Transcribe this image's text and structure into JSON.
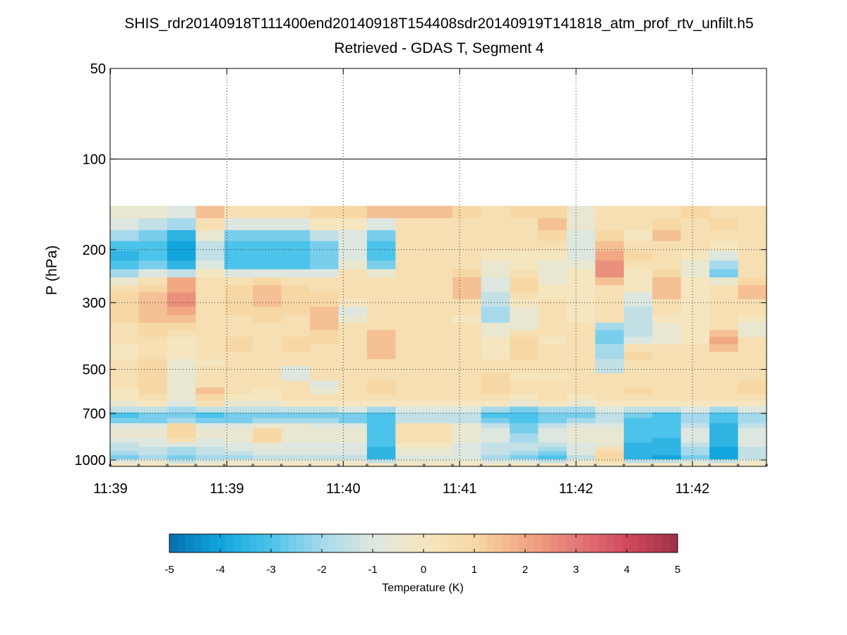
{
  "chart_data": {
    "type": "heatmap",
    "title": "SHIS_rdr20140918T111400end20140918T154408sdr20140919T141818_atm_prof_rtv_unfilt.h5",
    "subtitle": "Retrieved - GDAS T, Segment 4",
    "ylabel": "P (hPa)",
    "xlabel": "",
    "y_scale": "log",
    "y_reversed": true,
    "ylim": [
      50,
      1050
    ],
    "y_ticks": [
      50,
      100,
      200,
      300,
      500,
      700,
      1000
    ],
    "y_tick_labels": [
      "50",
      "100",
      "200",
      "300",
      "500",
      "700",
      "1000"
    ],
    "x_tick_labels": [
      "11:39",
      "11:39",
      "11:40",
      "11:41",
      "11:42",
      "11:42"
    ],
    "grid": true,
    "colorbar": {
      "label": "Temperature (K)",
      "range": [
        -5,
        5
      ],
      "ticks": [
        -5,
        -4,
        -3,
        -2,
        -1,
        0,
        1,
        2,
        3,
        4,
        5
      ],
      "tick_labels": [
        "-5",
        "-4",
        "-3",
        "-2",
        "-1",
        "0",
        "1",
        "2",
        "3",
        "4",
        "5"
      ],
      "colors": [
        "#0570b0",
        "#11a5dc",
        "#4cc3ea",
        "#a6d9ec",
        "#dde7e0",
        "#f5e6c0",
        "#f7d8a5",
        "#f1a883",
        "#e47877",
        "#d14a5c",
        "#a1304a"
      ]
    },
    "levels_hPa": [
      150,
      165,
      180,
      195,
      210,
      225,
      240,
      255,
      270,
      285,
      300,
      320,
      340,
      360,
      380,
      400,
      425,
      450,
      475,
      500,
      530,
      560,
      590,
      620,
      650,
      680,
      710,
      740,
      770,
      800,
      830,
      860,
      890,
      920,
      950,
      980,
      1010,
      1040
    ],
    "columns": [
      {
        "label": "1",
        "values": [
          -0.5,
          -1.0,
          -2.0,
          -3.0,
          -3.5,
          -3.0,
          -2.0,
          -0.5,
          0.5,
          1.0,
          1.0,
          1.0,
          1.0,
          0.5,
          0.5,
          0.5,
          0.0,
          0.0,
          0.5,
          0.5,
          0.5,
          0.5,
          0.0,
          0.0,
          -0.5,
          -1.5,
          -3.0,
          -2.5,
          -1.0,
          -0.5,
          -0.5,
          -1.0,
          -1.5,
          -1.5,
          -2.0,
          -2.5,
          -1.0,
          0.0
        ]
      },
      {
        "label": "2",
        "values": [
          -0.5,
          -1.5,
          -2.5,
          -3.0,
          -3.0,
          -2.5,
          -1.0,
          0.5,
          1.0,
          1.5,
          1.5,
          1.5,
          1.5,
          1.0,
          1.0,
          0.5,
          0.5,
          0.5,
          1.0,
          1.0,
          1.0,
          1.0,
          1.0,
          0.5,
          0.0,
          -1.5,
          -2.5,
          -2.5,
          -1.0,
          -0.5,
          -0.5,
          -1.0,
          -1.0,
          -1.5,
          -1.5,
          -2.0,
          -0.5,
          0.0
        ]
      },
      {
        "label": "3",
        "values": [
          -1.0,
          -2.0,
          -3.5,
          -4.0,
          -4.0,
          -3.5,
          -1.5,
          2.0,
          2.0,
          2.5,
          2.5,
          2.0,
          1.5,
          1.0,
          0.5,
          0.0,
          0.0,
          0.0,
          -0.5,
          -0.5,
          -0.5,
          -0.5,
          -0.5,
          -0.5,
          -1.0,
          -2.0,
          -2.5,
          -2.0,
          1.0,
          1.0,
          1.0,
          0.5,
          -1.0,
          -2.0,
          -2.0,
          -2.5,
          -1.5,
          0.0
        ]
      },
      {
        "label": "4",
        "values": [
          1.5,
          0.5,
          -0.5,
          -1.5,
          -1.5,
          -1.0,
          0.0,
          0.5,
          0.5,
          0.5,
          0.5,
          0.5,
          0.5,
          0.5,
          0.5,
          0.5,
          0.5,
          0.5,
          0.0,
          0.5,
          0.5,
          0.5,
          1.5,
          1.0,
          0.5,
          -1.5,
          -3.0,
          -2.5,
          -1.0,
          -0.5,
          -0.5,
          -1.0,
          -1.0,
          -1.5,
          -1.5,
          -2.0,
          -1.0,
          0.0
        ]
      },
      {
        "label": "5",
        "values": [
          0.5,
          -1.0,
          -2.5,
          -3.0,
          -3.0,
          -3.0,
          -1.0,
          0.5,
          1.0,
          1.0,
          1.0,
          1.0,
          0.5,
          0.5,
          0.5,
          1.0,
          1.0,
          0.5,
          0.5,
          0.5,
          0.5,
          0.5,
          0.5,
          0.0,
          -0.5,
          -1.5,
          -2.5,
          -2.5,
          -1.0,
          -0.5,
          -0.5,
          -0.5,
          -1.0,
          -1.0,
          -1.5,
          -2.0,
          -0.5,
          0.0
        ]
      },
      {
        "label": "6",
        "values": [
          0.5,
          -1.0,
          -2.5,
          -3.0,
          -3.0,
          -3.0,
          -1.0,
          1.0,
          1.5,
          1.5,
          1.5,
          1.0,
          1.0,
          0.5,
          0.5,
          0.5,
          0.5,
          0.5,
          0.5,
          0.5,
          0.5,
          0.5,
          0.0,
          0.0,
          -0.5,
          -1.5,
          -2.5,
          -2.0,
          -0.5,
          1.0,
          1.0,
          1.0,
          -0.5,
          -1.0,
          -1.0,
          -1.5,
          -0.5,
          0.0
        ]
      },
      {
        "label": "7",
        "values": [
          0.5,
          -1.0,
          -2.5,
          -3.0,
          -3.0,
          -3.0,
          -1.0,
          0.5,
          1.0,
          1.0,
          1.0,
          1.0,
          0.5,
          0.5,
          0.5,
          1.0,
          1.0,
          0.5,
          0.5,
          -1.0,
          -1.0,
          0.5,
          0.5,
          0.5,
          0.0,
          -1.5,
          -2.5,
          -2.0,
          -0.5,
          -0.5,
          -0.5,
          -0.5,
          -1.0,
          -1.0,
          -1.0,
          -1.5,
          -0.5,
          0.0
        ]
      },
      {
        "label": "8",
        "values": [
          1.0,
          0.0,
          -1.5,
          -2.5,
          -2.5,
          -2.5,
          -1.0,
          0.5,
          0.5,
          1.0,
          1.0,
          1.5,
          1.5,
          1.5,
          1.0,
          1.0,
          0.5,
          0.5,
          0.5,
          0.5,
          0.5,
          -1.0,
          -0.5,
          0.5,
          0.0,
          -1.5,
          -2.5,
          -2.0,
          -1.0,
          -0.5,
          -0.5,
          -0.5,
          -1.0,
          -1.0,
          -1.0,
          -1.5,
          -0.5,
          0.0
        ]
      },
      {
        "label": "9",
        "values": [
          1.0,
          0.0,
          -1.0,
          -1.0,
          -1.0,
          -0.5,
          0.5,
          0.5,
          0.5,
          0.5,
          0.0,
          -1.0,
          -0.5,
          0.5,
          0.5,
          0.5,
          0.5,
          0.5,
          0.5,
          0.5,
          0.5,
          0.5,
          0.5,
          0.5,
          0.0,
          -1.0,
          -2.5,
          -2.5,
          -1.0,
          -0.5,
          -0.5,
          -0.5,
          -1.0,
          -1.0,
          -1.0,
          -1.5,
          -0.5,
          0.0
        ]
      },
      {
        "label": "10",
        "values": [
          1.5,
          -1.0,
          -2.5,
          -3.0,
          -3.0,
          -2.5,
          -0.5,
          0.5,
          0.5,
          0.5,
          0.5,
          0.5,
          0.5,
          0.5,
          1.5,
          1.5,
          1.5,
          1.5,
          0.5,
          0.5,
          0.5,
          1.0,
          1.0,
          0.5,
          0.0,
          -2.0,
          -3.0,
          -3.0,
          -3.0,
          -3.0,
          -3.0,
          -3.0,
          -3.0,
          -3.5,
          -3.5,
          -3.5,
          -1.5,
          0.0
        ]
      },
      {
        "label": "11",
        "values": [
          1.5,
          0.5,
          0.5,
          0.5,
          0.5,
          0.5,
          0.5,
          0.5,
          0.5,
          0.5,
          0.5,
          0.5,
          0.5,
          0.5,
          0.5,
          0.5,
          0.5,
          0.5,
          0.5,
          0.5,
          0.5,
          0.5,
          0.5,
          0.5,
          0.0,
          -1.0,
          -1.5,
          -1.5,
          0.5,
          0.5,
          0.5,
          0.5,
          0.0,
          -0.5,
          -0.5,
          -1.0,
          -0.5,
          0.0
        ]
      },
      {
        "label": "12",
        "values": [
          1.5,
          0.5,
          0.5,
          0.5,
          0.5,
          0.5,
          0.5,
          0.5,
          0.5,
          0.5,
          0.5,
          0.5,
          0.5,
          0.5,
          0.5,
          0.5,
          0.5,
          0.5,
          0.5,
          0.5,
          0.5,
          0.5,
          0.5,
          0.5,
          0.0,
          -1.0,
          -1.5,
          -1.5,
          0.5,
          0.5,
          0.5,
          0.5,
          0.0,
          -0.5,
          -0.5,
          -1.0,
          -0.5,
          0.0
        ]
      },
      {
        "label": "13",
        "values": [
          1.0,
          0.5,
          0.5,
          0.5,
          0.5,
          0.5,
          1.0,
          1.5,
          1.5,
          1.5,
          0.5,
          0.5,
          0.0,
          0.5,
          0.5,
          0.5,
          0.5,
          0.5,
          0.5,
          0.5,
          0.5,
          0.5,
          0.5,
          0.5,
          0.0,
          -1.0,
          -1.5,
          -1.5,
          -0.5,
          -0.5,
          -0.5,
          -0.5,
          -1.0,
          -1.0,
          -1.0,
          -1.0,
          -0.5,
          0.0
        ]
      },
      {
        "label": "14",
        "values": [
          0.5,
          0.5,
          0.5,
          0.5,
          0.0,
          -0.5,
          -0.5,
          -1.0,
          -1.0,
          -1.5,
          -1.5,
          -2.0,
          -2.0,
          -0.5,
          -0.5,
          0.0,
          0.0,
          0.0,
          0.5,
          0.5,
          1.0,
          1.0,
          1.0,
          0.5,
          0.0,
          -2.0,
          -3.0,
          -2.5,
          -1.5,
          -1.0,
          -1.0,
          -1.0,
          -1.5,
          -1.5,
          -1.5,
          -2.0,
          -1.0,
          0.0
        ]
      },
      {
        "label": "15",
        "values": [
          1.0,
          0.5,
          0.5,
          0.5,
          0.0,
          0.0,
          0.5,
          1.0,
          1.0,
          0.5,
          0.0,
          -0.5,
          -0.5,
          -0.5,
          0.5,
          1.0,
          1.0,
          1.0,
          0.5,
          0.5,
          0.0,
          0.5,
          0.5,
          0.0,
          -0.5,
          -2.5,
          -3.0,
          -3.0,
          -2.5,
          -2.5,
          -2.0,
          -2.0,
          -1.5,
          -1.5,
          -2.0,
          -2.5,
          -1.0,
          0.0
        ]
      },
      {
        "label": "16",
        "values": [
          1.0,
          1.5,
          1.0,
          0.5,
          0.0,
          -0.5,
          -0.5,
          -0.5,
          0.0,
          0.0,
          0.5,
          0.5,
          0.5,
          0.5,
          0.5,
          0.0,
          0.5,
          0.5,
          0.5,
          0.5,
          0.0,
          0.5,
          0.5,
          0.5,
          0.0,
          -2.0,
          -2.5,
          -2.5,
          -1.5,
          -1.0,
          -1.0,
          -1.0,
          -1.5,
          -2.0,
          -2.5,
          -3.0,
          -1.5,
          0.0
        ]
      },
      {
        "label": "17",
        "values": [
          -0.5,
          -0.5,
          -1.0,
          -1.0,
          -1.0,
          -0.5,
          0.0,
          0.0,
          0.0,
          0.0,
          0.0,
          0.0,
          0.0,
          0.5,
          0.5,
          0.5,
          0.5,
          0.5,
          0.5,
          0.5,
          0.5,
          0.5,
          0.5,
          0.0,
          -0.5,
          -2.0,
          -2.5,
          -2.0,
          -1.0,
          -0.5,
          -0.5,
          -0.5,
          -1.0,
          -1.0,
          -1.0,
          -1.5,
          -0.5,
          0.0
        ]
      },
      {
        "label": "18",
        "values": [
          0.5,
          0.5,
          1.0,
          1.5,
          2.0,
          2.5,
          2.5,
          1.5,
          0.5,
          0.5,
          0.5,
          0.5,
          0.5,
          -2.0,
          -2.5,
          -2.5,
          -2.0,
          -2.0,
          -1.5,
          -1.5,
          0.5,
          0.5,
          0.5,
          0.5,
          0.0,
          -1.0,
          -1.5,
          -1.5,
          -1.0,
          -0.5,
          -0.5,
          -0.5,
          -0.5,
          0.5,
          1.0,
          1.0,
          0.5,
          0.0
        ]
      },
      {
        "label": "19",
        "values": [
          0.5,
          0.5,
          0.0,
          0.5,
          1.0,
          0.5,
          0.0,
          0.0,
          0.0,
          -1.0,
          -1.0,
          -1.5,
          -1.5,
          -1.5,
          -1.5,
          -1.0,
          0.5,
          1.0,
          0.5,
          0.5,
          0.5,
          0.5,
          1.0,
          0.5,
          0.0,
          -1.5,
          -2.5,
          -3.0,
          -3.0,
          -3.0,
          -3.0,
          -3.0,
          -3.5,
          -3.5,
          -3.5,
          -3.5,
          -1.5,
          0.0
        ]
      },
      {
        "label": "20",
        "values": [
          0.5,
          1.0,
          1.5,
          0.5,
          0.5,
          0.5,
          1.0,
          1.5,
          1.5,
          1.5,
          0.5,
          0.5,
          0.0,
          -0.5,
          -0.5,
          -0.5,
          0.5,
          0.5,
          0.5,
          0.5,
          0.5,
          0.5,
          0.5,
          0.5,
          0.0,
          -1.5,
          -3.0,
          -3.0,
          -3.0,
          -3.0,
          -3.0,
          -3.5,
          -3.5,
          -3.5,
          -3.5,
          -4.0,
          -1.5,
          0.0
        ]
      },
      {
        "label": "21",
        "values": [
          1.0,
          0.5,
          0.5,
          0.5,
          0.0,
          -0.5,
          -0.5,
          0.0,
          0.0,
          0.0,
          0.0,
          0.0,
          0.0,
          0.0,
          0.0,
          0.0,
          0.5,
          0.5,
          0.5,
          0.5,
          0.5,
          0.5,
          0.5,
          0.5,
          0.0,
          -1.0,
          -2.0,
          -2.0,
          -1.5,
          -1.0,
          -1.0,
          -1.0,
          -1.5,
          -2.0,
          -2.0,
          -2.5,
          -1.0,
          0.0
        ]
      },
      {
        "label": "22",
        "values": [
          0.5,
          1.0,
          0.5,
          0.0,
          -1.0,
          -2.0,
          -2.5,
          -0.5,
          0.5,
          0.5,
          0.5,
          0.5,
          0.5,
          0.5,
          1.5,
          2.0,
          1.5,
          0.5,
          0.5,
          0.5,
          0.5,
          0.5,
          0.5,
          0.5,
          0.0,
          -2.0,
          -3.0,
          -3.0,
          -3.5,
          -3.5,
          -3.5,
          -3.5,
          -3.5,
          -4.0,
          -4.0,
          -4.0,
          -1.5,
          0.0
        ]
      },
      {
        "label": "23",
        "values": [
          0.5,
          0.5,
          0.5,
          0.5,
          0.5,
          0.5,
          0.5,
          1.0,
          1.5,
          1.5,
          0.5,
          0.5,
          0.0,
          -0.5,
          -0.5,
          0.5,
          0.5,
          0.5,
          0.5,
          0.5,
          0.5,
          1.0,
          1.0,
          0.5,
          0.0,
          -1.0,
          -2.0,
          -2.0,
          -1.5,
          -1.0,
          -1.0,
          -1.0,
          -1.0,
          -1.5,
          -1.5,
          -1.5,
          -0.5,
          0.0
        ]
      }
    ],
    "sample_marker_levels_hPa": [
      1040
    ]
  }
}
